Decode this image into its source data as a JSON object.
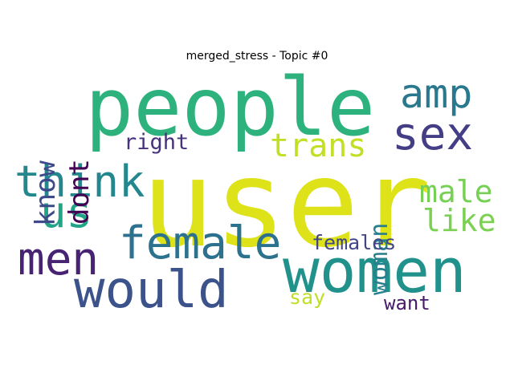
{
  "title": "merged_stress - Topic #0",
  "words": {
    "user": {
      "text": "user",
      "color": "#dde318"
    },
    "people": {
      "text": "people",
      "color": "#2db27d"
    },
    "women": {
      "text": "women",
      "color": "#21918c"
    },
    "would": {
      "text": "would",
      "color": "#3b528b"
    },
    "female": {
      "text": "female",
      "color": "#2c728e"
    },
    "men": {
      "text": "men",
      "color": "#482374"
    },
    "think": {
      "text": "think",
      "color": "#24878e"
    },
    "us": {
      "text": "us",
      "color": "#20a386"
    },
    "sex": {
      "text": "sex",
      "color": "#433e85"
    },
    "amp": {
      "text": "amp",
      "color": "#2a788e"
    },
    "trans": {
      "text": "trans",
      "color": "#c2df23"
    },
    "know": {
      "text": "know",
      "color": "#3e4a89"
    },
    "dont": {
      "text": "dont",
      "color": "#440154"
    },
    "right": {
      "text": "right",
      "color": "#46327e"
    },
    "woman": {
      "text": "woman",
      "color": "#277f8e"
    },
    "male": {
      "text": "male",
      "color": "#75d054"
    },
    "like": {
      "text": "like",
      "color": "#7ad151"
    },
    "females": {
      "text": "females",
      "color": "#414487"
    },
    "say": {
      "text": "say",
      "color": "#bddf26"
    },
    "want": {
      "text": "want",
      "color": "#481a6c"
    }
  }
}
